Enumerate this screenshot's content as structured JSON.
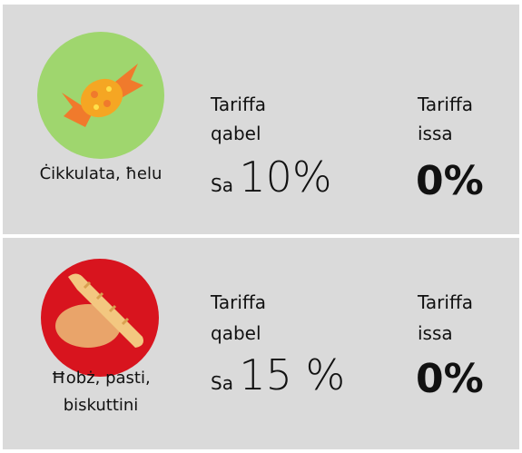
{
  "items": [
    {
      "label_lines": [
        "Ċikkulata, ħelu"
      ],
      "before_heading": [
        "Tariffa",
        "qabel"
      ],
      "before_prefix": "Sa",
      "before_value": "10%",
      "after_heading": [
        "Tariffa",
        "issa"
      ],
      "after_value": "0%"
    },
    {
      "label_lines": [
        "Ħobż, pasti,",
        "biskuttini"
      ],
      "before_heading": [
        "Tariffa",
        "qabel"
      ],
      "before_prefix": "Sa",
      "before_value": "15 %",
      "after_heading": [
        "Tariffa",
        "issa"
      ],
      "after_value": "0%"
    }
  ]
}
